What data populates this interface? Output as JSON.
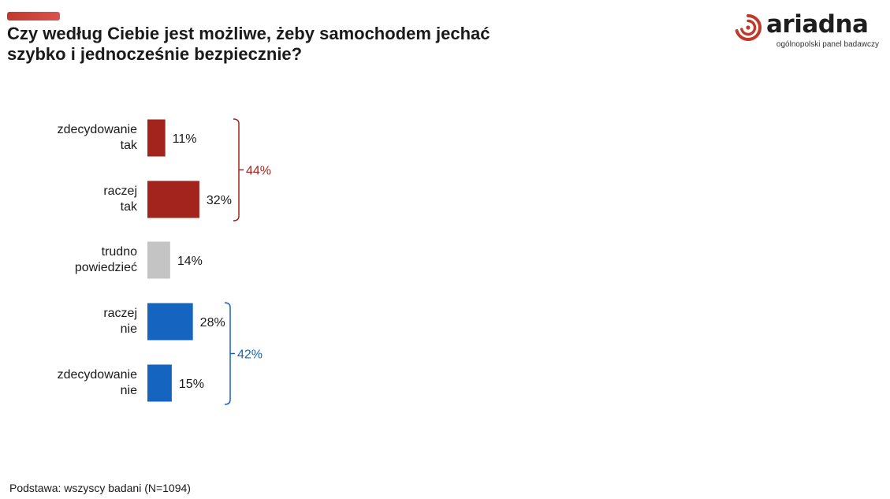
{
  "header": {
    "title_line1": "Czy według Ciebie jest możliwe, żeby samochodem jechać",
    "title_line2": "szybko i jednocześnie bezpiecznie?"
  },
  "brand": {
    "name": "ariadna",
    "tagline": "ogólnopolski panel badawczy",
    "accent_color": "#c0392b"
  },
  "footnote": "Podstawa: wszyscy badani (N=1094)",
  "chart_data": {
    "type": "bar",
    "orientation": "horizontal",
    "title": "Czy według Ciebie jest możliwe, żeby samochodem jechać szybko i jednocześnie bezpiecznie?",
    "unit": "%",
    "xlim": [
      0,
      100
    ],
    "categories": [
      [
        "zdecydowanie",
        "tak"
      ],
      [
        "raczej",
        "tak"
      ],
      [
        "trudno",
        "powiedzieć"
      ],
      [
        "raczej",
        "nie"
      ],
      [
        "zdecydowanie",
        "nie"
      ]
    ],
    "values": [
      11,
      32,
      14,
      28,
      15
    ],
    "value_labels": [
      "11%",
      "32%",
      "14%",
      "28%",
      "15%"
    ],
    "colors": [
      "#a3241d",
      "#a3241d",
      "#c4c4c4",
      "#1565c0",
      "#1565c0"
    ],
    "groups": [
      {
        "label": "44%",
        "value": 44,
        "from": 0,
        "to": 1,
        "color": "#a3241d"
      },
      {
        "label": "42%",
        "value": 42,
        "from": 3,
        "to": 4,
        "color": "#1565c0"
      }
    ]
  }
}
